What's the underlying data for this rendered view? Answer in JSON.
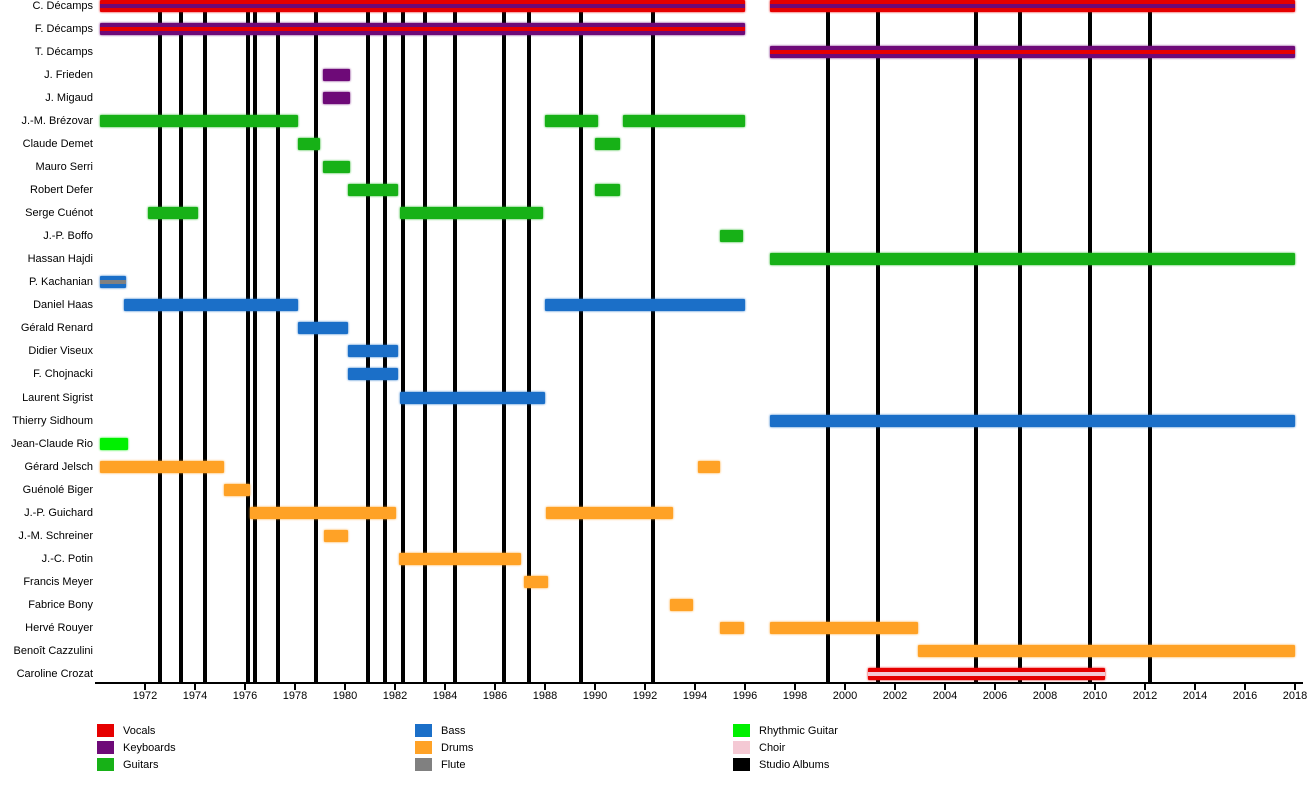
{
  "chart_data": {
    "type": "gantt-timeline",
    "title": "",
    "xlabel": "",
    "ylabel": "",
    "x_axis": {
      "min": 1970,
      "max": 2018.2,
      "tick_years": [
        1972,
        1974,
        1976,
        1978,
        1980,
        1982,
        1984,
        1986,
        1988,
        1990,
        1992,
        1994,
        1996,
        1998,
        2000,
        2002,
        2004,
        2006,
        2008,
        2010,
        2012,
        2014,
        2016,
        2018
      ],
      "grid": false
    },
    "timeline_gap": {
      "from": 1996.05,
      "to": 1996.95
    },
    "album_lines_years": [
      1972.6,
      1973.45,
      1974.4,
      1976.1,
      1976.4,
      1977.3,
      1978.85,
      1980.9,
      1981.6,
      1982.3,
      1983.2,
      1984.4,
      1986.35,
      1987.35,
      1989.45,
      1992.3,
      1999.3,
      2001.3,
      2005.25,
      2007.0,
      2009.8,
      2012.2
    ],
    "colors": {
      "vocals": "#e60000",
      "keyboards": "#6e0a78",
      "guitars": "#17b117",
      "bass": "#1b6fc8",
      "drums": "#ffa226",
      "flute": "#808080",
      "rhythmic_guitar": "#00f000",
      "choir": "#f4c9d4",
      "studio_albums": "#000000"
    },
    "members": [
      {
        "name": "C. Décamps",
        "bars": [
          {
            "start": 1970.2,
            "end": 1996.0,
            "role": "vocals",
            "secondary_role": "keyboards"
          },
          {
            "start": 1997.0,
            "end": 2018.0,
            "role": "vocals",
            "secondary_role": "keyboards"
          }
        ]
      },
      {
        "name": "F. Décamps",
        "bars": [
          {
            "start": 1970.2,
            "end": 1996.0,
            "role": "keyboards",
            "secondary_role": "vocals"
          }
        ]
      },
      {
        "name": "T. Décamps",
        "bars": [
          {
            "start": 1997.0,
            "end": 2018.0,
            "role": "keyboards",
            "secondary_role": "vocals"
          }
        ]
      },
      {
        "name": "J. Frieden",
        "bars": [
          {
            "start": 1979.1,
            "end": 1980.2,
            "role": "keyboards"
          }
        ]
      },
      {
        "name": "J. Migaud",
        "bars": [
          {
            "start": 1979.1,
            "end": 1980.2,
            "role": "keyboards"
          }
        ]
      },
      {
        "name": "J.-M. Brézovar",
        "bars": [
          {
            "start": 1970.2,
            "end": 1978.1,
            "role": "guitars"
          },
          {
            "start": 1988.0,
            "end": 1990.1,
            "role": "guitars"
          },
          {
            "start": 1991.1,
            "end": 1996.0,
            "role": "guitars"
          }
        ]
      },
      {
        "name": "Claude Demet",
        "bars": [
          {
            "start": 1978.1,
            "end": 1979.0,
            "role": "guitars"
          },
          {
            "start": 1990.0,
            "end": 1991.0,
            "role": "guitars"
          }
        ]
      },
      {
        "name": "Mauro Serri",
        "bars": [
          {
            "start": 1979.1,
            "end": 1980.2,
            "role": "guitars"
          }
        ]
      },
      {
        "name": "Robert Defer",
        "bars": [
          {
            "start": 1980.1,
            "end": 1982.1,
            "role": "guitars"
          },
          {
            "start": 1990.0,
            "end": 1991.0,
            "role": "guitars"
          }
        ]
      },
      {
        "name": "Serge Cuénot",
        "bars": [
          {
            "start": 1972.1,
            "end": 1974.1,
            "role": "guitars"
          },
          {
            "start": 1982.2,
            "end": 1987.9,
            "role": "guitars"
          }
        ]
      },
      {
        "name": "J.-P. Boffo",
        "bars": [
          {
            "start": 1995.0,
            "end": 1995.9,
            "role": "guitars"
          }
        ]
      },
      {
        "name": "Hassan Hajdi",
        "bars": [
          {
            "start": 1997.0,
            "end": 2018.0,
            "role": "guitars"
          }
        ]
      },
      {
        "name": "P. Kachanian",
        "bars": [
          {
            "start": 1970.2,
            "end": 1971.25,
            "role": "bass",
            "secondary_role": "flute"
          }
        ]
      },
      {
        "name": "Daniel Haas",
        "bars": [
          {
            "start": 1971.15,
            "end": 1978.1,
            "role": "bass"
          },
          {
            "start": 1988.0,
            "end": 1996.0,
            "role": "bass"
          }
        ]
      },
      {
        "name": "Gérald Renard",
        "bars": [
          {
            "start": 1978.1,
            "end": 1980.1,
            "role": "bass"
          }
        ]
      },
      {
        "name": "Didier Viseux",
        "bars": [
          {
            "start": 1980.1,
            "end": 1982.1,
            "role": "bass"
          }
        ]
      },
      {
        "name": "F. Chojnacki",
        "bars": [
          {
            "start": 1980.1,
            "end": 1982.1,
            "role": "bass"
          }
        ]
      },
      {
        "name": "Laurent Sigrist",
        "bars": [
          {
            "start": 1982.2,
            "end": 1988.0,
            "role": "bass"
          }
        ]
      },
      {
        "name": "Thierry Sidhoum",
        "bars": [
          {
            "start": 1997.0,
            "end": 2018.0,
            "role": "bass"
          }
        ]
      },
      {
        "name": "Jean-Claude Rio",
        "bars": [
          {
            "start": 1970.2,
            "end": 1971.3,
            "role": "rhythmic_guitar"
          }
        ]
      },
      {
        "name": "Gérard Jelsch",
        "bars": [
          {
            "start": 1970.2,
            "end": 1975.15,
            "role": "drums"
          },
          {
            "start": 1994.1,
            "end": 1995.0,
            "role": "drums"
          }
        ]
      },
      {
        "name": "Guénolé Biger",
        "bars": [
          {
            "start": 1975.15,
            "end": 1976.2,
            "role": "drums"
          }
        ]
      },
      {
        "name": "J.-P. Guichard",
        "bars": [
          {
            "start": 1976.2,
            "end": 1982.05,
            "role": "drums"
          },
          {
            "start": 1988.05,
            "end": 1993.1,
            "role": "drums"
          }
        ]
      },
      {
        "name": "J.-M. Schreiner",
        "bars": [
          {
            "start": 1979.15,
            "end": 1980.1,
            "role": "drums"
          }
        ]
      },
      {
        "name": "J.-C. Potin",
        "bars": [
          {
            "start": 1982.15,
            "end": 1987.05,
            "role": "drums"
          }
        ]
      },
      {
        "name": "Francis Meyer",
        "bars": [
          {
            "start": 1987.15,
            "end": 1988.1,
            "role": "drums"
          }
        ]
      },
      {
        "name": "Fabrice Bony",
        "bars": [
          {
            "start": 1993.0,
            "end": 1993.9,
            "role": "drums"
          }
        ]
      },
      {
        "name": "Hervé Rouyer",
        "bars": [
          {
            "start": 1995.0,
            "end": 1995.95,
            "role": "drums"
          },
          {
            "start": 1997.0,
            "end": 2002.9,
            "role": "drums"
          }
        ]
      },
      {
        "name": "Benoît Cazzulini",
        "bars": [
          {
            "start": 2002.9,
            "end": 2018.0,
            "role": "drums"
          }
        ]
      },
      {
        "name": "Caroline Crozat",
        "bars": [
          {
            "start": 2000.9,
            "end": 2010.4,
            "role": "vocals",
            "secondary_role": "choir"
          }
        ]
      }
    ],
    "legend": {
      "columns": [
        [
          {
            "label": "Vocals",
            "color_key": "vocals"
          },
          {
            "label": "Keyboards",
            "color_key": "keyboards"
          },
          {
            "label": "Guitars",
            "color_key": "guitars"
          }
        ],
        [
          {
            "label": "Bass",
            "color_key": "bass"
          },
          {
            "label": "Drums",
            "color_key": "drums"
          },
          {
            "label": "Flute",
            "color_key": "flute"
          }
        ],
        [
          {
            "label": "Rhythmic Guitar",
            "color_key": "rhythmic_guitar"
          },
          {
            "label": "Choir",
            "color_key": "choir"
          },
          {
            "label": "Studio Albums",
            "color_key": "studio_albums"
          }
        ]
      ],
      "position": "bottom"
    }
  }
}
